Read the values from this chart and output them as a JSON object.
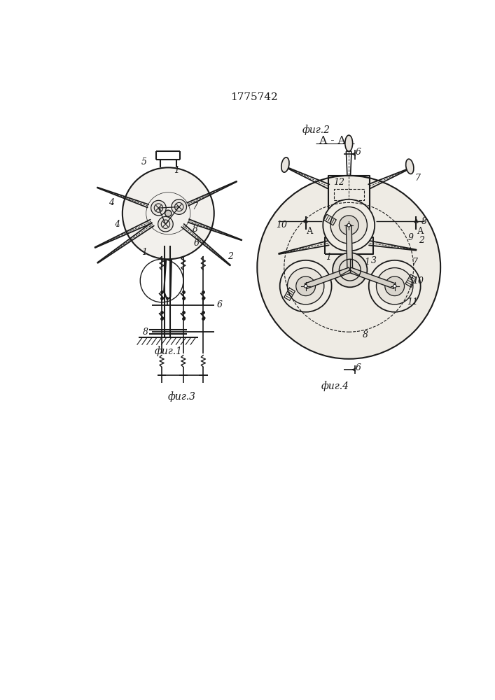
{
  "title": "1775742",
  "bg_color": "#ffffff",
  "line_color": "#1a1a1a",
  "fig1_caption": "фиг.1",
  "fig2_caption": "фиг.2",
  "fig3_caption": "фиг.3",
  "fig4_caption": "фиг.4",
  "section_label": "А - А"
}
